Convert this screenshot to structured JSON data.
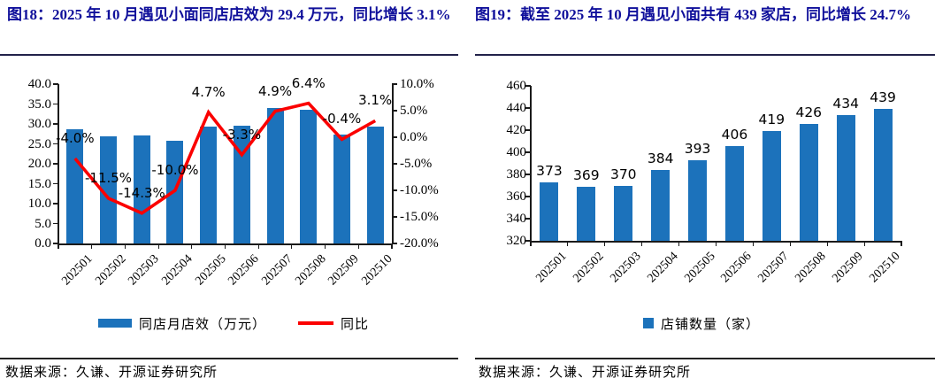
{
  "colors": {
    "bar": "#1c72bb",
    "line": "#fb0000",
    "title": "#10109b"
  },
  "panels": [
    {
      "title": "图18：2025 年 10 月遇见小面同店店效为 29.4 万元，同比增长 3.1%",
      "legend_bar": "同店月店效（万元）",
      "legend_line": "同比",
      "source": "数据来源：久谦、开源证券研究所"
    },
    {
      "title": "图19：截至 2025 年 10 月遇见小面共有 439 家店，同比增长 24.7%",
      "legend_bar": "店铺数量（家）",
      "source": "数据来源：久谦、开源证券研究所"
    }
  ],
  "chart_data": [
    {
      "type": "bar",
      "title": "图18：2025 年 10 月遇见小面同店店效为 29.4 万元，同比增长 3.1%",
      "categories": [
        "202501",
        "202502",
        "202503",
        "202504",
        "202505",
        "202506",
        "202507",
        "202508",
        "202509",
        "202510"
      ],
      "series": [
        {
          "name": "同店月店效（万元）",
          "type": "bar",
          "axis": "left",
          "values": [
            28.7,
            27.0,
            27.2,
            25.7,
            29.3,
            29.5,
            34.0,
            33.5,
            27.4,
            29.4
          ]
        },
        {
          "name": "同比",
          "type": "line",
          "axis": "right",
          "values": [
            -4.0,
            -11.5,
            -14.3,
            -10.0,
            4.7,
            -3.3,
            4.9,
            6.4,
            -0.4,
            3.1
          ],
          "point_labels": [
            "-4.0%",
            "-11.5%",
            "-14.3%",
            "-10.0%",
            "4.7%",
            "-3.3%",
            "4.9%",
            "6.4%",
            "-0.4%",
            "3.1%"
          ]
        }
      ],
      "left_axis": {
        "min": 0,
        "max": 40,
        "step": 5,
        "tick_labels": [
          "40.0",
          "35.0",
          "30.0",
          "25.0",
          "20.0",
          "15.0",
          "10.0",
          "5.0",
          "0.0"
        ]
      },
      "right_axis": {
        "min": -20,
        "max": 10,
        "step": 5,
        "tick_labels": [
          "10.0%",
          "5.0%",
          "0.0%",
          "-5.0%",
          "-10.0%",
          "-15.0%",
          "-20.0%"
        ]
      },
      "grid": false,
      "legend_position": "bottom"
    },
    {
      "type": "bar",
      "title": "图19：截至 2025 年 10 月遇见小面共有 439 家店，同比增长 24.7%",
      "categories": [
        "202501",
        "202502",
        "202503",
        "202504",
        "202505",
        "202506",
        "202507",
        "202508",
        "202509",
        "202510"
      ],
      "series": [
        {
          "name": "店铺数量（家）",
          "type": "bar",
          "axis": "left",
          "values": [
            373,
            369,
            370,
            384,
            393,
            406,
            419,
            426,
            434,
            439
          ],
          "point_labels": [
            "373",
            "369",
            "370",
            "384",
            "393",
            "406",
            "419",
            "426",
            "434",
            "439"
          ]
        }
      ],
      "left_axis": {
        "min": 320,
        "max": 460,
        "step": 20,
        "tick_labels": [
          "460",
          "440",
          "420",
          "400",
          "380",
          "360",
          "340",
          "320"
        ]
      },
      "grid": false,
      "legend_position": "bottom"
    }
  ]
}
